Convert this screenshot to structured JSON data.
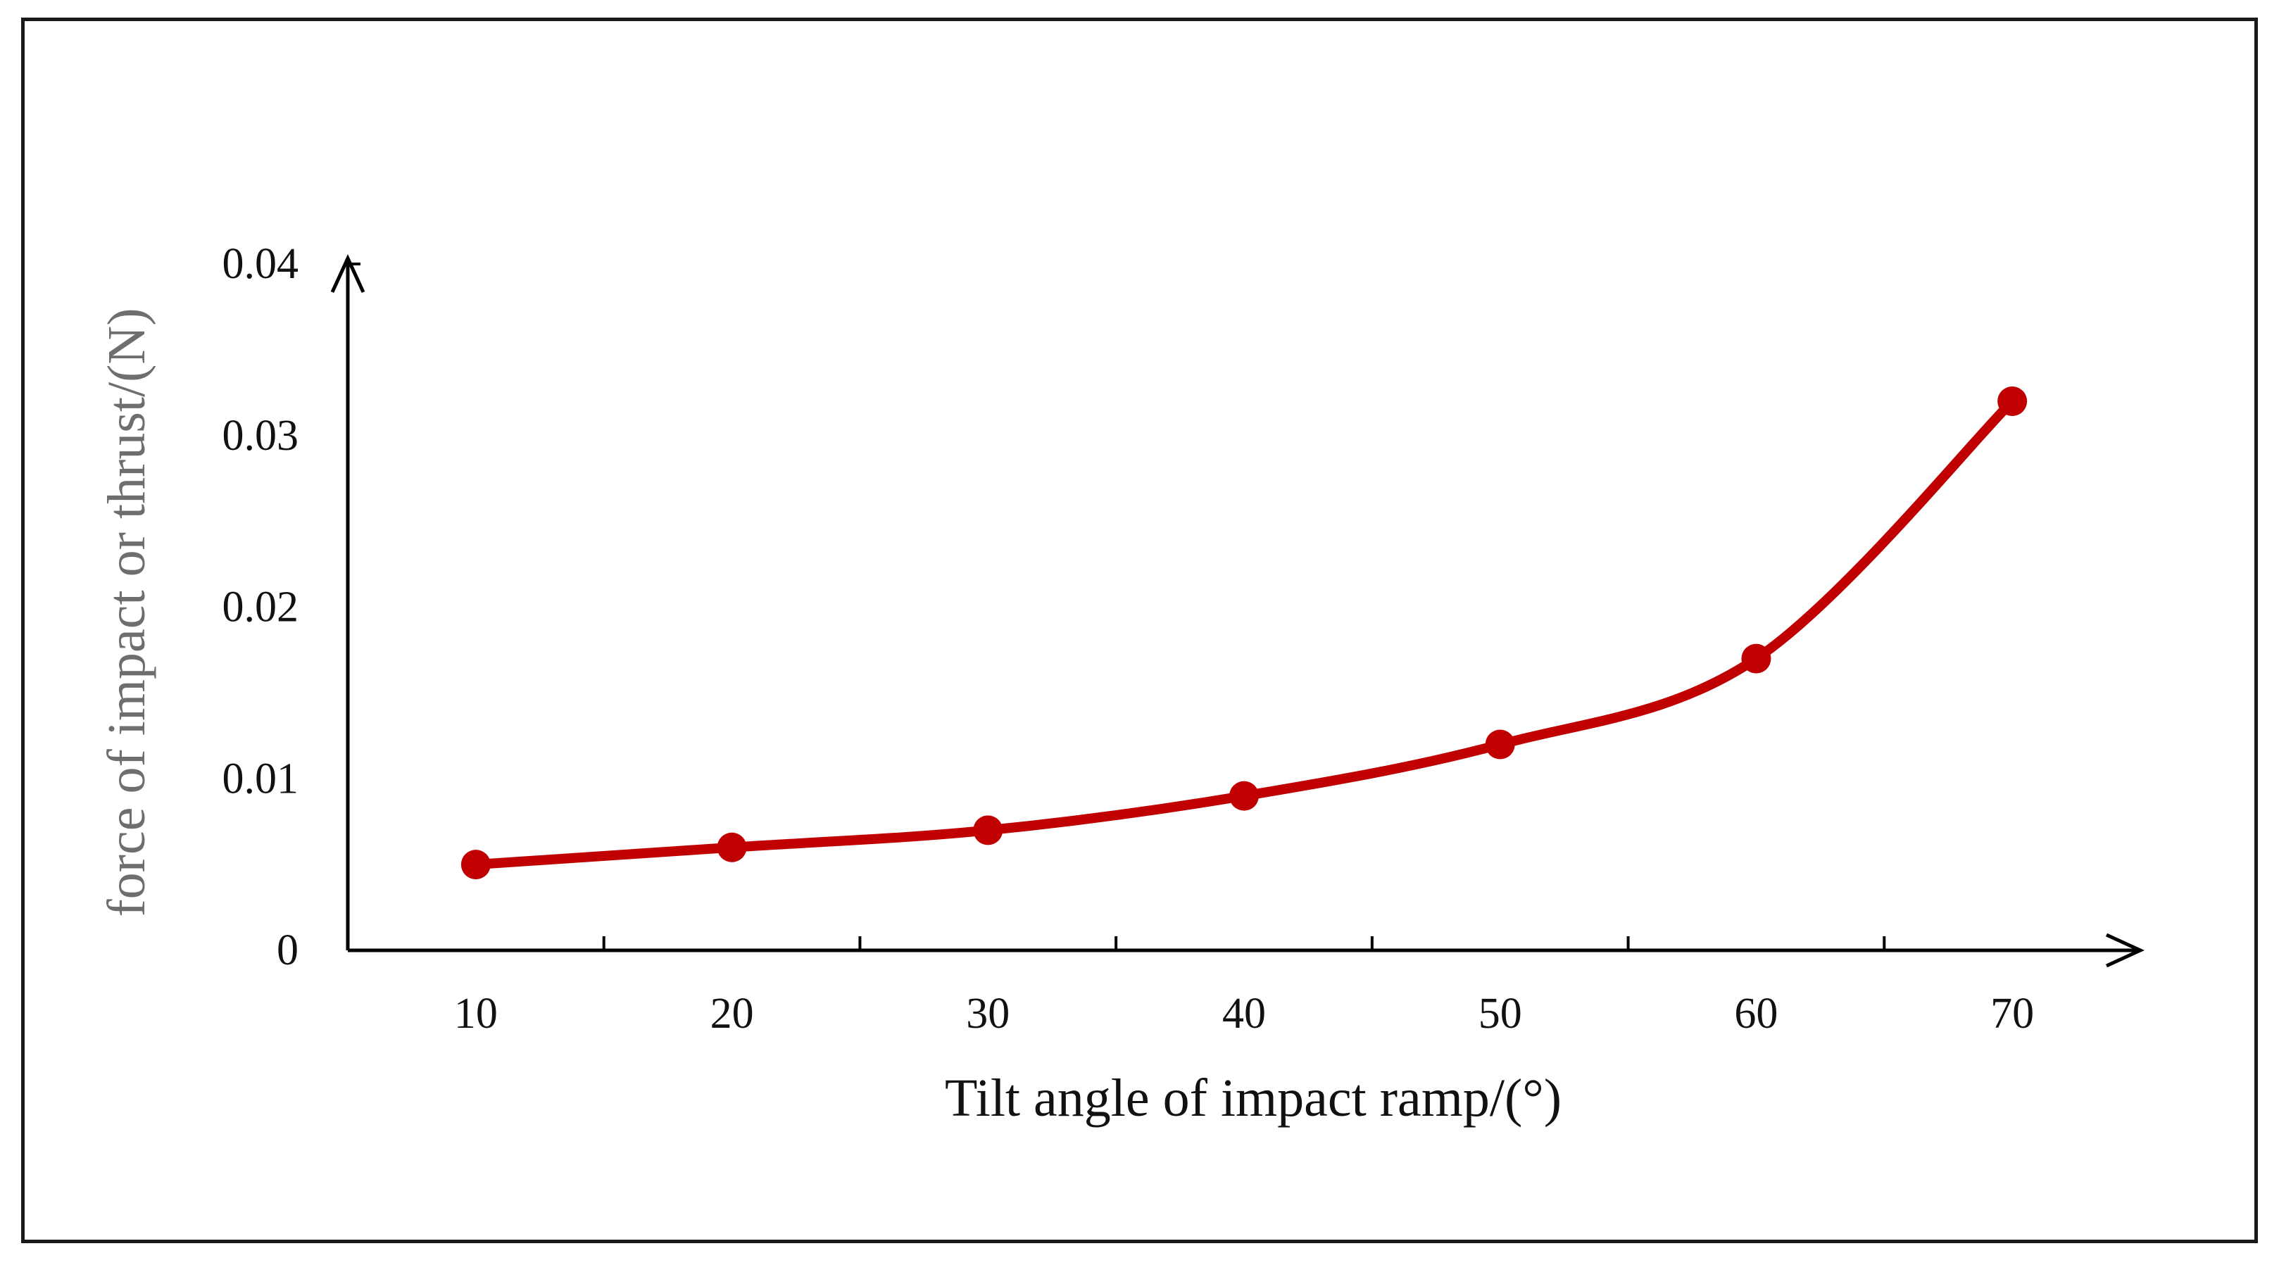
{
  "chart_data": {
    "type": "line",
    "title": "",
    "xlabel": "Tilt angle of impact ramp/(°)",
    "ylabel": "force of impact or thrust/(N)",
    "x": [
      10,
      20,
      30,
      40,
      50,
      60,
      70
    ],
    "x_tick_labels": [
      "10",
      "20",
      "30",
      "40",
      "50",
      "60",
      "70"
    ],
    "y_tick_labels": [
      "0",
      "0.01",
      "0.02",
      "0.03",
      "0.04"
    ],
    "y_ticks": [
      0,
      0.01,
      0.02,
      0.03,
      0.04
    ],
    "ylim": [
      0,
      0.04
    ],
    "xlim": [
      5,
      75
    ],
    "grid": false,
    "legend": "none",
    "series": [
      {
        "name": "force of impact or thrust",
        "color": "#c00000",
        "values": [
          0.005,
          0.006,
          0.007,
          0.009,
          0.012,
          0.017,
          0.032
        ]
      }
    ],
    "axis_color": "#000000"
  }
}
